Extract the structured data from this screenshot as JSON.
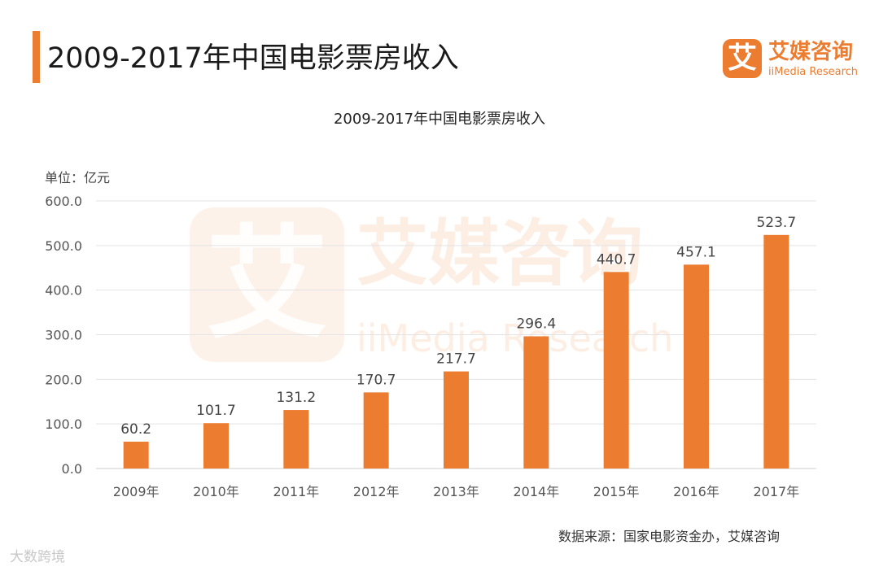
{
  "header": {
    "title": "2009-2017年中国电影票房收入",
    "brand_mark": "艾",
    "brand_cn": "艾媒咨询",
    "brand_en": "iiMedia Research"
  },
  "watermark": {
    "mark": "艾",
    "cn": "艾媒咨询",
    "en": "iiMedia Research",
    "corner": "大数跨境"
  },
  "footer": {
    "source": "数据来源：国家电影资金办，艾媒咨询"
  },
  "colors": {
    "bar": "#ec7c30",
    "grid": "#e3e3e3",
    "axis_text": "#555555",
    "label_text": "#444444"
  },
  "chart_data": {
    "type": "bar",
    "title": "2009-2017年中国电影票房收入",
    "unit_label": "单位：亿元",
    "xlabel": "",
    "ylabel": "",
    "ylim": [
      0,
      600
    ],
    "yticks": [
      "0.0",
      "100.0",
      "200.0",
      "300.0",
      "400.0",
      "500.0",
      "600.0"
    ],
    "grid": true,
    "categories": [
      "2009年",
      "2010年",
      "2011年",
      "2012年",
      "2013年",
      "2014年",
      "2015年",
      "2016年",
      "2017年"
    ],
    "values": [
      60.2,
      101.7,
      131.2,
      170.7,
      217.7,
      296.4,
      440.7,
      457.1,
      523.7
    ],
    "value_labels": [
      "60.2",
      "101.7",
      "131.2",
      "170.7",
      "217.7",
      "296.4",
      "440.7",
      "457.1",
      "523.7"
    ]
  }
}
